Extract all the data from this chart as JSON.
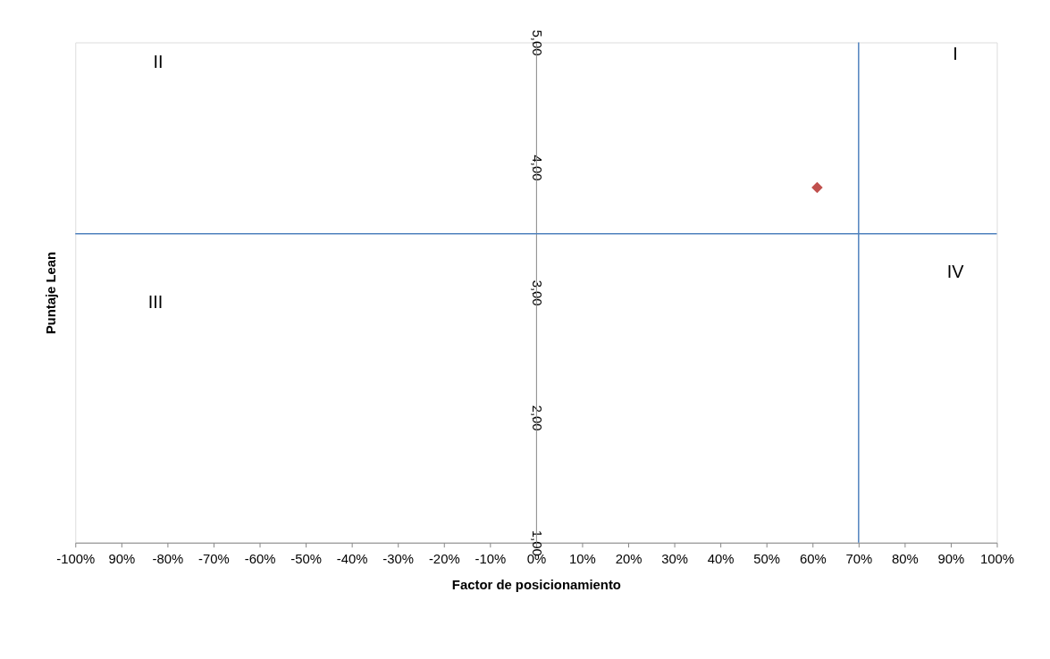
{
  "chart_data": {
    "type": "scatter",
    "xlabel": "Factor de posicionamiento",
    "ylabel": "Puntaje Lean",
    "x": [
      61
    ],
    "series": [
      {
        "color": "#c0504d",
        "values": [
          3.84
        ]
      }
    ],
    "marker": "diamond",
    "grid": false,
    "xlim": [
      -100,
      100
    ],
    "xticks": [
      {
        "value": -100,
        "label": "-100%"
      },
      {
        "value": -90,
        "label": "90%"
      },
      {
        "value": -80,
        "label": "-80%"
      },
      {
        "value": -70,
        "label": "-70%"
      },
      {
        "value": -60,
        "label": "-60%"
      },
      {
        "value": -50,
        "label": "-50%"
      },
      {
        "value": -40,
        "label": "-40%"
      },
      {
        "value": -30,
        "label": "-30%"
      },
      {
        "value": -20,
        "label": "-20%"
      },
      {
        "value": -10,
        "label": "-10%"
      },
      {
        "value": 0,
        "label": "0%"
      },
      {
        "value": 10,
        "label": "10%"
      },
      {
        "value": 20,
        "label": "20%"
      },
      {
        "value": 30,
        "label": "30%"
      },
      {
        "value": 40,
        "label": "40%"
      },
      {
        "value": 50,
        "label": "50%"
      },
      {
        "value": 60,
        "label": "60%"
      },
      {
        "value": 70,
        "label": "70%"
      },
      {
        "value": 80,
        "label": "80%"
      },
      {
        "value": 90,
        "label": "90%"
      },
      {
        "value": 100,
        "label": "100%"
      }
    ],
    "ylim": [
      1,
      5
    ],
    "yticks": [
      {
        "value": 1,
        "label": "1,00"
      },
      {
        "value": 2,
        "label": "2,00"
      },
      {
        "value": 3,
        "label": "3,00"
      },
      {
        "value": 4,
        "label": "4,00"
      },
      {
        "value": 5,
        "label": "5,00"
      }
    ],
    "ref_lines": [
      {
        "axis": "x",
        "value": 70,
        "color": "#4f81bd"
      },
      {
        "axis": "y",
        "value": 3.47,
        "color": "#4f81bd"
      }
    ],
    "annotations": [
      "I",
      "II",
      "III",
      "IV"
    ]
  }
}
